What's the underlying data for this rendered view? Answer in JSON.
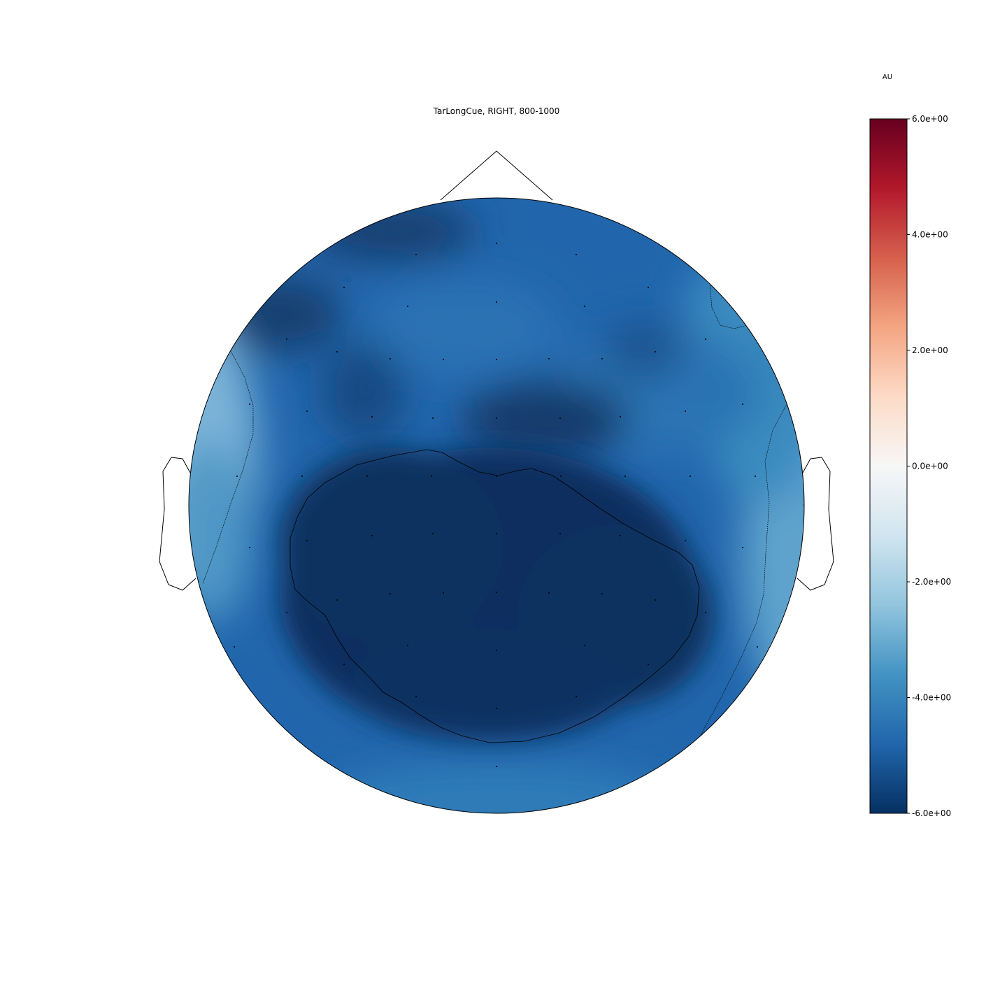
{
  "chart_data": {
    "type": "heatmap",
    "subtype": "eeg-topomap",
    "title": "TarLongCue, RIGHT, 800-1000",
    "colorbar": {
      "unit_label": "AU",
      "colormap": "RdBu_r",
      "range": [
        -6.0,
        6.0
      ],
      "ticks": [
        6.0,
        4.0,
        2.0,
        0.0,
        -2.0,
        -4.0,
        -6.0
      ],
      "tick_labels": [
        "6.0e+00",
        "4.0e+00",
        "2.0e+00",
        "0.0e+00",
        "-2.0e+00",
        "-4.0e+00",
        "-6.0e+00"
      ]
    },
    "contour_levels": [
      -5.5,
      -3.5
    ],
    "field_min_approx": -6.0,
    "field_max_approx": -2.5,
    "sensor_markers": "black dots",
    "head_outline": true
  }
}
